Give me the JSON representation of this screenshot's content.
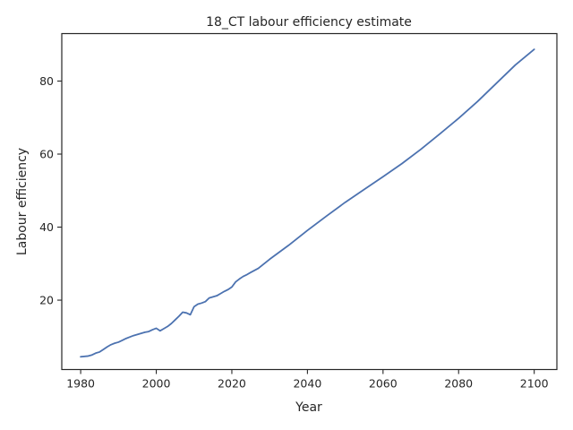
{
  "chart_data": {
    "type": "line",
    "title": "18_CT labour efficiency estimate",
    "xlabel": "Year",
    "ylabel": "Labour efficiency",
    "xlim": [
      1975,
      2106
    ],
    "ylim": [
      1,
      93
    ],
    "xticks": [
      1980,
      2000,
      2020,
      2040,
      2060,
      2080,
      2100
    ],
    "yticks": [
      20,
      40,
      60,
      80
    ],
    "grid": false,
    "line_color": "#4c72b0",
    "series": [
      {
        "x": [
          1980,
          1982,
          1983,
          1984,
          1985,
          1986,
          1987,
          1988,
          1989,
          1990,
          1991,
          1992,
          1993,
          1994,
          1995,
          1996,
          1997,
          1998,
          1999,
          2000,
          2001,
          2002,
          2003,
          2004,
          2005,
          2006,
          2007,
          2008,
          2009,
          2010,
          2011,
          2012,
          2013,
          2014,
          2015,
          2016,
          2017,
          2018,
          2019,
          2020,
          2021,
          2022,
          2023,
          2024,
          2025,
          2027,
          2030,
          2035,
          2040,
          2045,
          2050,
          2055,
          2060,
          2065,
          2070,
          2075,
          2080,
          2085,
          2090,
          2095,
          2100
        ],
        "values": [
          4.5,
          4.7,
          5.0,
          5.5,
          5.8,
          6.5,
          7.2,
          7.8,
          8.2,
          8.5,
          9.0,
          9.5,
          9.9,
          10.3,
          10.6,
          10.9,
          11.2,
          11.4,
          11.9,
          12.3,
          11.6,
          12.2,
          12.8,
          13.6,
          14.6,
          15.6,
          16.7,
          16.5,
          16.0,
          18.2,
          18.9,
          19.2,
          19.6,
          20.6,
          20.9,
          21.2,
          21.8,
          22.4,
          22.9,
          23.6,
          25.0,
          25.8,
          26.5,
          27.0,
          27.6,
          28.7,
          31.2,
          35.0,
          39.1,
          43.0,
          46.8,
          50.3,
          53.8,
          57.4,
          61.3,
          65.5,
          69.8,
          74.4,
          79.4,
          84.4,
          88.7
        ]
      }
    ]
  }
}
